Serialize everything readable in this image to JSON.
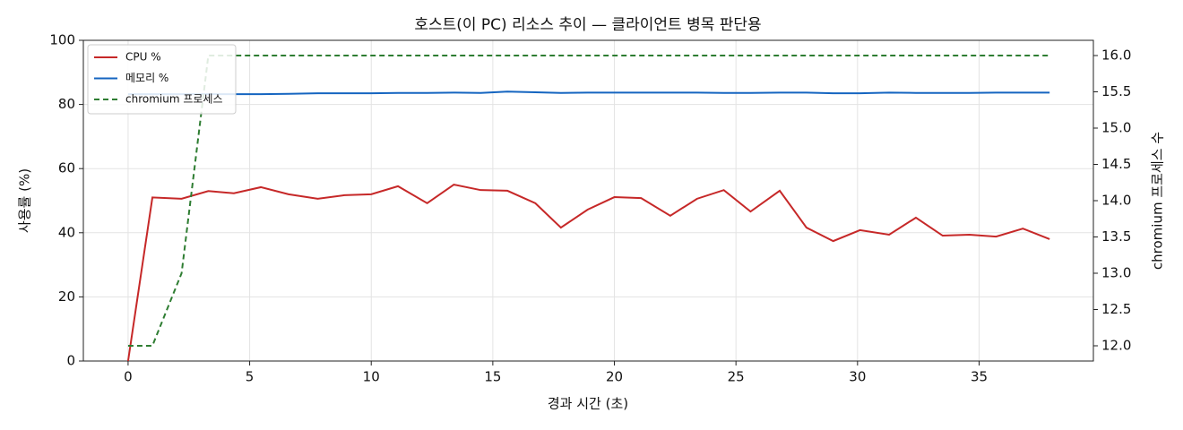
{
  "chart_data": {
    "type": "line",
    "title": "호스트(이 PC) 리소스 추이 — 클라이언트 병목 판단용",
    "x_label": "경과 시간 (초)",
    "y_label": "사용률 (%)",
    "y2_label": "chromium 프로세스 수",
    "x": [
      0,
      1.0,
      2.2,
      3.3,
      4.35,
      5.46,
      6.6,
      7.8,
      8.9,
      10.0,
      11.1,
      12.3,
      13.4,
      14.5,
      15.6,
      16.75,
      17.8,
      18.9,
      20.0,
      21.1,
      22.3,
      23.4,
      24.5,
      25.6,
      26.8,
      27.9,
      29.0,
      30.1,
      31.3,
      32.4,
      33.5,
      34.6,
      35.7,
      36.8,
      37.9
    ],
    "series": [
      {
        "name": "CPU %",
        "color": "#c62828",
        "linestyle": "solid",
        "values": [
          0,
          51,
          50.6,
          53,
          52.3,
          54.2,
          52,
          50.6,
          51.7,
          52,
          54.5,
          49.2,
          55,
          53.3,
          53.1,
          49.2,
          41.6,
          47.2,
          51.1,
          50.8,
          45.3,
          50.6,
          53.3,
          46.6,
          53.1,
          41.6,
          37.4,
          40.8,
          39.4,
          44.7,
          39.1,
          39.4,
          38.8,
          41.3,
          38
        ]
      },
      {
        "name": "메모리 %",
        "color": "#1565c0",
        "linestyle": "solid",
        "values": [
          83.2,
          83.2,
          83.2,
          83.2,
          83.2,
          83.2,
          83.3,
          83.5,
          83.5,
          83.5,
          83.6,
          83.6,
          83.7,
          83.6,
          84.0,
          83.8,
          83.6,
          83.7,
          83.7,
          83.7,
          83.7,
          83.7,
          83.6,
          83.6,
          83.7,
          83.7,
          83.5,
          83.5,
          83.7,
          83.6,
          83.6,
          83.6,
          83.7,
          83.7,
          83.7
        ]
      },
      {
        "name": "chromium 프로세스",
        "color": "#2e7d32",
        "linestyle": "dashed",
        "axis": "y2",
        "values": [
          12,
          12,
          13,
          16,
          16,
          16,
          16,
          16,
          16,
          16,
          16,
          16,
          16,
          16,
          16,
          16,
          16,
          16,
          16,
          16,
          16,
          16,
          16,
          16,
          16,
          16,
          16,
          16,
          16,
          16,
          16,
          16,
          16,
          16,
          16
        ]
      }
    ],
    "xlim": [
      -1.84,
      39.7
    ],
    "xticks": [
      0,
      5,
      10,
      15,
      20,
      25,
      30,
      35
    ],
    "ylim": [
      0,
      100
    ],
    "yticks": [
      0,
      20,
      40,
      60,
      80,
      100
    ],
    "y2lim": [
      11.79,
      16.21
    ],
    "y2ticks": [
      {
        "value": 12,
        "label": "12.0"
      },
      {
        "value": 12.5,
        "label": "12.5"
      },
      {
        "value": 13,
        "label": "13.0"
      },
      {
        "value": 13.5,
        "label": "13.5"
      },
      {
        "value": 14,
        "label": "14.0"
      },
      {
        "value": 14.5,
        "label": "14.5"
      },
      {
        "value": 15,
        "label": "15.0"
      },
      {
        "value": 15.5,
        "label": "15.5"
      },
      {
        "value": 16,
        "label": "16.0"
      }
    ],
    "grid": true,
    "legend": "upper left"
  }
}
